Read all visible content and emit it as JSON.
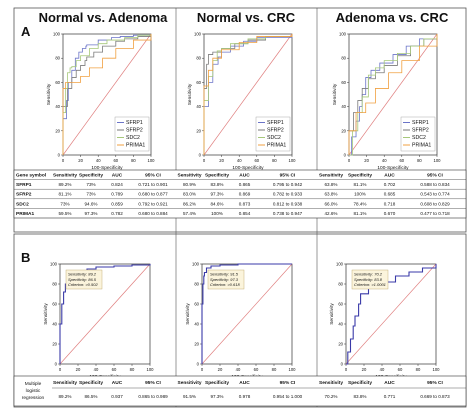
{
  "section_labels": [
    "A",
    "B"
  ],
  "panel_titles": [
    "Normal vs. Adenoma",
    "Normal vs. CRC",
    "Adenoma vs. CRC"
  ],
  "axis": {
    "ylabel": "Sensitivity",
    "xlabel": "100-Specificity",
    "ticks": [
      "0",
      "20",
      "40",
      "60",
      "80",
      "100"
    ]
  },
  "colors": {
    "SFRP1": "#6b74c8",
    "SFRP2": "#7a7a7a",
    "SDC2": "#a6c87a",
    "PRIMA1": "#f0a040",
    "diagonal": "#e08080",
    "roc": "#3a3aa8",
    "note_bg": "#fbf4dc"
  },
  "legend": [
    "SFRP1",
    "SFRP2",
    "SDC2",
    "PRIMA1"
  ],
  "table_a": {
    "headers": [
      "Gene symbol",
      "Sensitivity",
      "Specificity",
      "AUC",
      "95% CI",
      "Sensitivity",
      "Specificity",
      "AUC",
      "95% CI",
      "Sensitivity",
      "Specificity",
      "AUC",
      "95% CI"
    ],
    "rows": [
      {
        "gene": "SFRP1",
        "cells": [
          "89.2%",
          "73%",
          "0.824",
          "0.721 to 0.901",
          "80.9%",
          "83.8%",
          "0.865",
          "0.795 to 0.942",
          "63.8%",
          "81.1%",
          "0.702",
          "0.588 to 0.834"
        ]
      },
      {
        "gene": "SFRP2",
        "cells": [
          "81.1%",
          "73%",
          "0.789",
          "0.680 to 0.877",
          "83.0%",
          "97.3%",
          "0.869",
          "0.782 to 0.933",
          "63.8%",
          "100%",
          "0.685",
          "0.543 to 0.774"
        ]
      },
      {
        "gene": "SDC2",
        "cells": [
          "73%",
          "94.6%",
          "0.859",
          "0.792 to 0.921",
          "86.2%",
          "84.6%",
          "0.873",
          "0.812 to 0.938",
          "66.0%",
          "78.4%",
          "0.718",
          "0.608 to 0.829"
        ]
      },
      {
        "gene": "PRIMA1",
        "cells": [
          "59.5%",
          "97.3%",
          "0.782",
          "0.680 to 0.884",
          "57.4%",
          "100%",
          "0.854",
          "0.738 to 0.947",
          "42.6%",
          "81.1%",
          "0.670",
          "0.477 to 0.718"
        ]
      }
    ]
  },
  "notes_b": [
    {
      "lines": [
        "Sensitivity: 89.2",
        "Specificity: 86.5",
        "Criterion: >0.502"
      ]
    },
    {
      "lines": [
        "Sensitivity: 91.5",
        "Specificity: 97.3",
        "Criterion: >0.618"
      ]
    },
    {
      "lines": [
        "Sensitivity: 70.2",
        "Specificity: 83.8",
        "Criterion: >1.0001"
      ]
    }
  ],
  "table_b": {
    "row_label": [
      "Multiple",
      "logistic",
      "regression"
    ],
    "headers": [
      "Sensitivity",
      "Specificity",
      "AUC",
      "95% CI"
    ],
    "cells": [
      "89.2%",
      "86.5%",
      "0.937",
      "0.865 to 0.989",
      "91.5%",
      "97.3%",
      "0.978",
      "0.954 to 1.000",
      "70.2%",
      "83.8%",
      "0.771",
      "0.669 to 0.873"
    ]
  },
  "chart_data": [
    {
      "type": "line",
      "title": "Normal vs. Adenoma",
      "xlabel": "100-Specificity",
      "ylabel": "Sensitivity",
      "xlim": [
        0,
        100
      ],
      "ylim": [
        0,
        100
      ],
      "legend_position": "bottom-right",
      "series": [
        {
          "name": "SFRP1",
          "x": [
            0,
            0,
            4,
            6,
            10,
            14,
            18,
            22,
            26,
            27,
            40,
            55,
            65,
            80,
            100
          ],
          "y": [
            0,
            30,
            45,
            60,
            70,
            80,
            85,
            88,
            90,
            91,
            95,
            97,
            98,
            99,
            100
          ]
        },
        {
          "name": "SFRP2",
          "x": [
            0,
            0,
            5,
            10,
            15,
            20,
            25,
            27,
            35,
            45,
            60,
            70,
            85,
            100
          ],
          "y": [
            0,
            40,
            55,
            64,
            70,
            74,
            78,
            81,
            85,
            90,
            94,
            96,
            98,
            100
          ]
        },
        {
          "name": "SDC2",
          "x": [
            0,
            0,
            3,
            5,
            8,
            10,
            15,
            20,
            30,
            40,
            50,
            70,
            85,
            100
          ],
          "y": [
            0,
            35,
            55,
            68,
            72,
            73,
            78,
            82,
            88,
            92,
            95,
            97,
            99,
            100
          ]
        },
        {
          "name": "PRIMA1",
          "x": [
            0,
            0,
            3,
            10,
            20,
            30,
            45,
            60,
            80,
            100
          ],
          "y": [
            0,
            55,
            60,
            60,
            65,
            72,
            80,
            88,
            95,
            100
          ]
        }
      ]
    },
    {
      "type": "line",
      "title": "Normal vs. CRC",
      "xlabel": "100-Specificity",
      "ylabel": "Sensitivity",
      "xlim": [
        0,
        100
      ],
      "ylim": [
        0,
        100
      ],
      "legend_position": "bottom-right",
      "series": [
        {
          "name": "SFRP1",
          "x": [
            0,
            0,
            5,
            10,
            16,
            20,
            30,
            45,
            60,
            100
          ],
          "y": [
            0,
            40,
            60,
            75,
            81,
            85,
            90,
            94,
            97,
            100
          ]
        },
        {
          "name": "SFRP2",
          "x": [
            0,
            0,
            3,
            5,
            10,
            20,
            35,
            50,
            70,
            100
          ],
          "y": [
            0,
            55,
            75,
            83,
            85,
            88,
            92,
            95,
            98,
            100
          ]
        },
        {
          "name": "SDC2",
          "x": [
            0,
            0,
            5,
            10,
            15,
            20,
            30,
            50,
            70,
            100
          ],
          "y": [
            0,
            45,
            65,
            78,
            86,
            88,
            92,
            96,
            98,
            100
          ]
        },
        {
          "name": "PRIMA1",
          "x": [
            0,
            0,
            5,
            10,
            20,
            40,
            60,
            100
          ],
          "y": [
            0,
            57,
            70,
            80,
            87,
            93,
            98,
            100
          ]
        }
      ]
    },
    {
      "type": "line",
      "title": "Adenoma vs. CRC",
      "xlabel": "100-Specificity",
      "ylabel": "Sensitivity",
      "xlim": [
        0,
        100
      ],
      "ylim": [
        0,
        100
      ],
      "legend_position": "bottom-right",
      "series": [
        {
          "name": "SFRP1",
          "x": [
            0,
            3,
            8,
            12,
            15,
            19,
            25,
            35,
            50,
            65,
            80,
            100
          ],
          "y": [
            0,
            15,
            28,
            40,
            50,
            64,
            70,
            76,
            83,
            90,
            96,
            100
          ]
        },
        {
          "name": "SFRP2",
          "x": [
            0,
            0,
            5,
            10,
            15,
            22,
            30,
            40,
            55,
            70,
            85,
            100
          ],
          "y": [
            0,
            20,
            35,
            45,
            55,
            63,
            68,
            74,
            82,
            90,
            96,
            100
          ]
        },
        {
          "name": "SDC2",
          "x": [
            0,
            4,
            10,
            15,
            22,
            30,
            40,
            55,
            70,
            85,
            100
          ],
          "y": [
            0,
            20,
            35,
            48,
            66,
            72,
            78,
            84,
            90,
            96,
            100
          ]
        },
        {
          "name": "PRIMA1",
          "x": [
            0,
            0,
            8,
            19,
            30,
            45,
            60,
            80,
            100
          ],
          "y": [
            0,
            20,
            35,
            43,
            55,
            68,
            78,
            90,
            100
          ]
        }
      ]
    },
    {
      "type": "line",
      "title": "",
      "xlabel": "100-Specificity",
      "ylabel": "Sensitivity",
      "xlim": [
        0,
        100
      ],
      "ylim": [
        0,
        100
      ],
      "series": [
        {
          "x": [
            0,
            0,
            2,
            4,
            6,
            8,
            10,
            13.5,
            20,
            30,
            40,
            60,
            80,
            100
          ],
          "y": [
            0,
            40,
            60,
            72,
            80,
            85,
            88,
            89.2,
            92,
            95,
            97,
            98,
            99,
            100
          ]
        }
      ]
    },
    {
      "type": "line",
      "title": "",
      "xlabel": "100-Specificity",
      "ylabel": "Sensitivity",
      "xlim": [
        0,
        100
      ],
      "ylim": [
        0,
        100
      ],
      "series": [
        {
          "x": [
            0,
            0,
            1,
            2,
            2.7,
            5,
            10,
            20,
            40,
            100
          ],
          "y": [
            0,
            60,
            80,
            88,
            91.5,
            96,
            98,
            99,
            100,
            100
          ]
        }
      ]
    },
    {
      "type": "line",
      "title": "",
      "xlabel": "100-Specificity",
      "ylabel": "Sensitivity",
      "xlim": [
        0,
        100
      ],
      "ylim": [
        0,
        100
      ],
      "series": [
        {
          "x": [
            0,
            2,
            5,
            8,
            10,
            14,
            16.2,
            25,
            40,
            55,
            70,
            85,
            100
          ],
          "y": [
            0,
            12,
            25,
            38,
            48,
            60,
            70.2,
            76,
            82,
            88,
            92,
            96,
            100
          ]
        }
      ]
    }
  ]
}
